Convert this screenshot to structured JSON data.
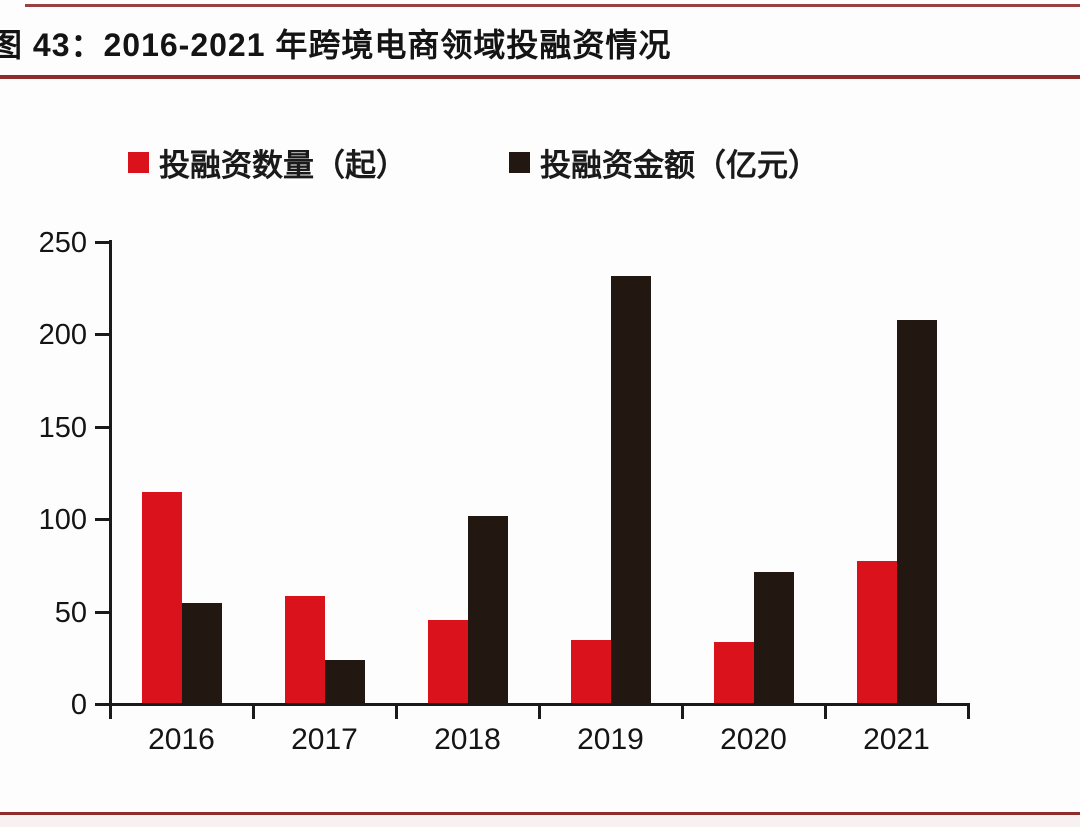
{
  "figure": {
    "title": "图 43：2016-2021 年跨境电商领域投融资情况"
  },
  "legend": {
    "items": [
      {
        "label": "投融资数量（起）"
      },
      {
        "label": "投融资金额（亿元）"
      }
    ]
  },
  "chart_data": {
    "type": "bar",
    "title": "2016-2021 年跨境电商领域投融资情况",
    "categories": [
      "2016",
      "2017",
      "2018",
      "2019",
      "2020",
      "2021"
    ],
    "series": [
      {
        "name": "投融资数量（起）",
        "color": "#d9121b",
        "values": [
          114,
          58,
          45,
          34,
          33,
          77
        ]
      },
      {
        "name": "投融资金额（亿元）",
        "color": "#231712",
        "values": [
          54,
          23,
          101,
          231,
          71,
          207
        ]
      }
    ],
    "xlabel": "",
    "ylabel": "",
    "ylim": [
      0,
      250
    ],
    "yticks": [
      0,
      50,
      100,
      150,
      200,
      250
    ],
    "grid": false,
    "legend_position": "top"
  },
  "colors": {
    "accent_line": "#8e2b2b",
    "axis": "#1a1a1a",
    "text": "#141414",
    "background": "#fdfdfd"
  }
}
